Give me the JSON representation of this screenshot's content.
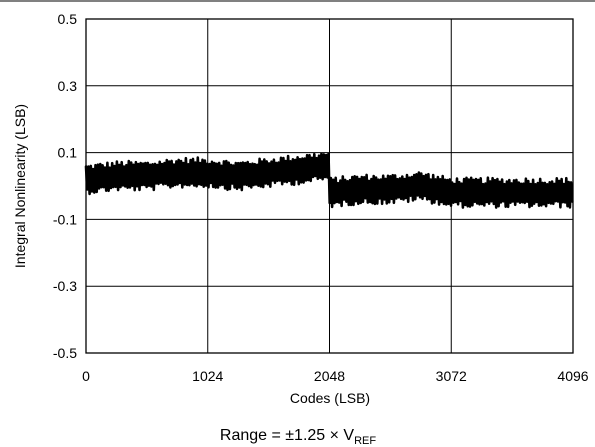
{
  "chart_data": {
    "type": "line",
    "title": "",
    "xlabel": "Codes (LSB)",
    "ylabel": "Integral Nonlinearity (LSB)",
    "xlim": [
      0,
      4096
    ],
    "ylim": [
      -0.5,
      0.5
    ],
    "xticks": [
      0,
      1024,
      2048,
      3072,
      4096
    ],
    "xtick_labels": [
      "0",
      "1024",
      "2048",
      "3072",
      "4096"
    ],
    "yticks": [
      0.5,
      0.3,
      0.1,
      -0.1,
      -0.3,
      -0.5
    ],
    "ytick_labels": [
      "0.5",
      "0.3",
      "0.1",
      "-0.1",
      "-0.3",
      "-0.5"
    ],
    "grid": true,
    "legend": "none",
    "series": [
      {
        "color": "#000000",
        "x": [
          0,
          256,
          512,
          768,
          1024,
          1280,
          1536,
          1792,
          2048,
          2049,
          2304,
          2560,
          2816,
          3072,
          3328,
          3584,
          3840,
          4096
        ],
        "y": [
          0.02,
          0.03,
          0.03,
          0.04,
          0.04,
          0.03,
          0.04,
          0.05,
          0.06,
          -0.02,
          -0.01,
          -0.01,
          0.0,
          -0.02,
          -0.02,
          -0.02,
          -0.02,
          -0.02
        ],
        "band_halfwidth": 0.045
      }
    ],
    "caption": {
      "prefix": "Range = ±1.25 × V",
      "subscript": "REF"
    }
  }
}
